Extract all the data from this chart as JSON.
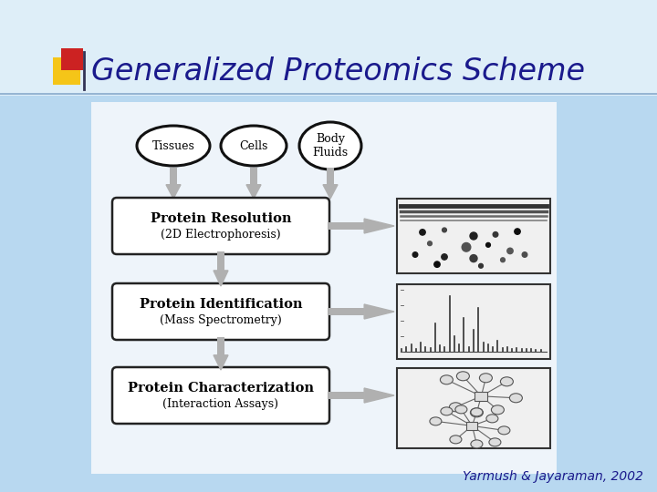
{
  "title": "Generalized Proteomics Scheme",
  "citation": "Yarmush & Jayaraman, 2002",
  "bg_color": "#b8d8f0",
  "title_color": "#1a1a8c",
  "citation_color": "#1a1a8c",
  "box_color": "#ffffff",
  "box_edge": "#222222",
  "ellipse_color": "#ffffff",
  "ellipse_edge": "#111111",
  "sources": [
    "Tissues",
    "Cells",
    "Body\nFluids"
  ],
  "steps": [
    {
      "main": "Protein Resolution",
      "sub": "(2D Electrophoresis)"
    },
    {
      "main": "Protein Identification",
      "sub": "(Mass Spectrometry)"
    },
    {
      "main": "Protein Characterization",
      "sub": "(Interaction Assays)"
    }
  ],
  "title_square_yellow": "#f5c518",
  "title_square_red": "#cc2222",
  "panel_color": "#f2f2f2",
  "panel_edge": "#aaaaaa"
}
